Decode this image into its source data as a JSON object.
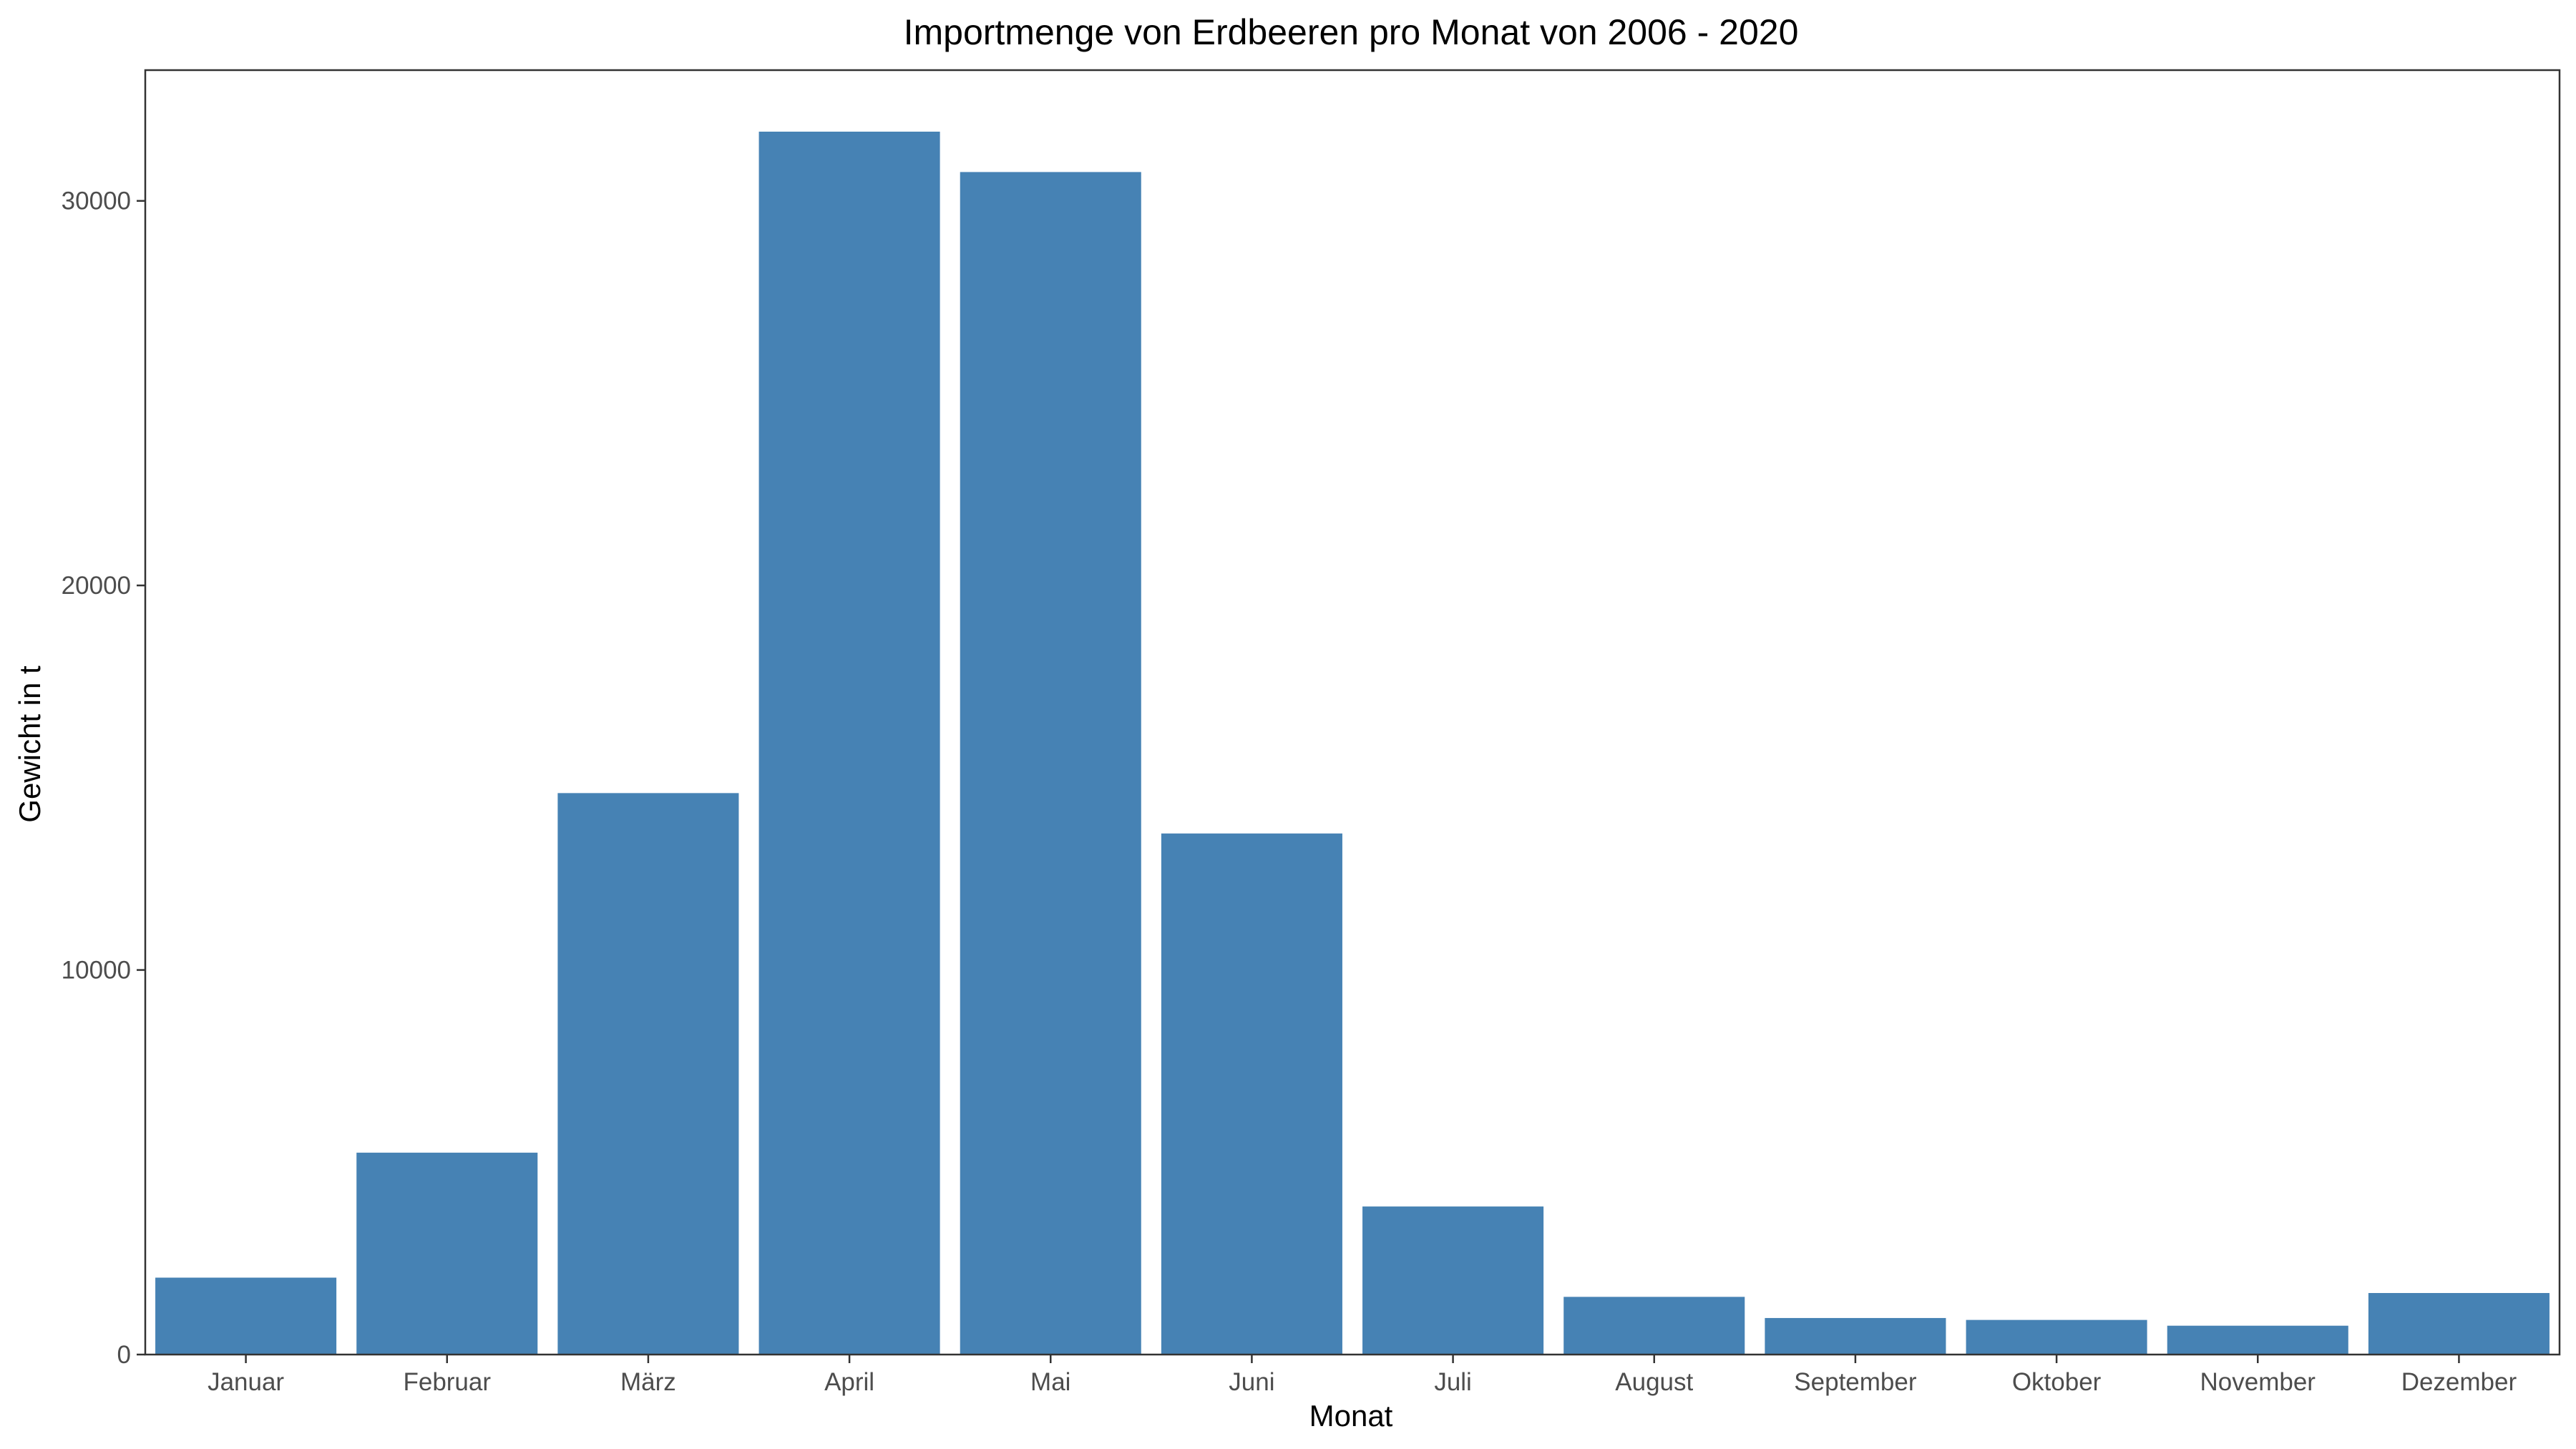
{
  "chart_data": {
    "type": "bar",
    "title": "Importmenge von Erdbeeren pro Monat von 2006 - 2020",
    "xlabel": "Monat",
    "ylabel": "Gewicht in t",
    "categories": [
      "Januar",
      "Februar",
      "März",
      "April",
      "Mai",
      "Juni",
      "Juli",
      "August",
      "September",
      "Oktober",
      "November",
      "Dezember"
    ],
    "values": [
      2000,
      5250,
      14600,
      31800,
      30750,
      13550,
      3850,
      1500,
      950,
      900,
      750,
      1600
    ],
    "ylim": [
      0,
      33400
    ],
    "yticks": [
      0,
      10000,
      20000,
      30000
    ],
    "grid": false,
    "bar_color": "#4682B4"
  }
}
